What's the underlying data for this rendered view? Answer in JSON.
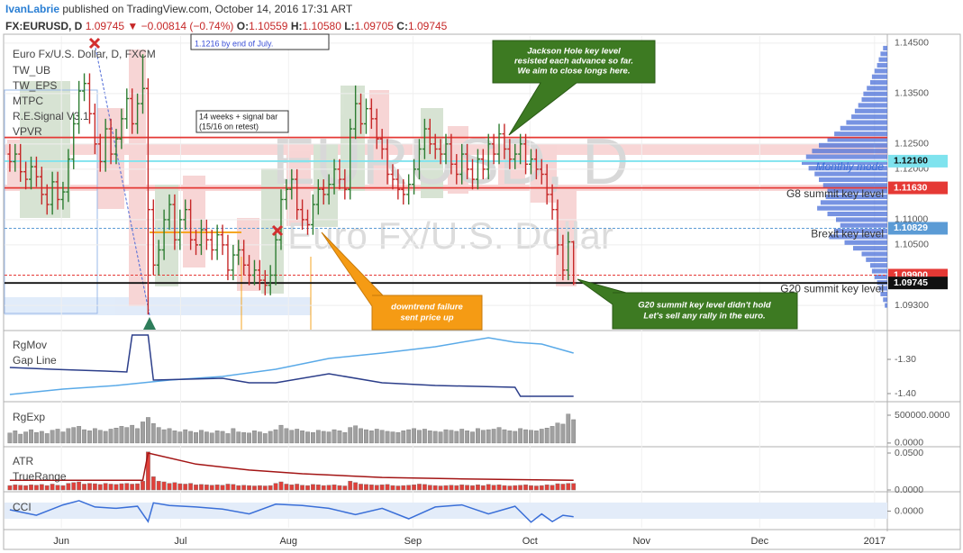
{
  "header": {
    "author": "IvanLabrie",
    "published": "published on TradingView.com, October 14, 2016 17:31 ART",
    "symbol": "FX:EURUSD, D",
    "last": "1.09745",
    "direction": "▼",
    "change": "−0.00814 (−0.74%)",
    "ohlc": [
      {
        "label": "O:",
        "value": "1.10559"
      },
      {
        "label": "H:",
        "value": "1.10580"
      },
      {
        "label": "L:",
        "value": "1.09705"
      },
      {
        "label": "C:",
        "value": "1.09745"
      }
    ]
  },
  "annotations": {
    "target_note": "1.1216 by end of July.",
    "signal_note": [
      "14 weeks + signal bar",
      "(15/16 on retest)"
    ],
    "jackson": [
      "Jackson Hole key level",
      "resisted each advance so far.",
      "We aim to close longs here."
    ],
    "downtrend": [
      "downtrend failure",
      "sent price up"
    ],
    "g20": [
      "G20 summit key level didn't hold",
      "Let's sell any rally in the euro."
    ]
  },
  "chart_data": [
    {
      "type": "ohlc",
      "title": "Euro Fx/U.S. Dollar, D, FXCM",
      "indicators": [
        "TW_UB",
        "TW_EPS",
        "MTPC",
        "R.E.Signal V3.1",
        "VPVR"
      ],
      "watermark": "EURUSD, D",
      "watermark_sub": "Euro Fx/U.S. Dollar",
      "up_color": "#2e7d32",
      "down_color": "#c62828",
      "grid": true,
      "open": [
        1.123,
        1.1215,
        1.123,
        1.1195,
        1.118,
        1.1205,
        1.1185,
        1.115,
        1.113,
        1.1175,
        1.114,
        1.1155,
        1.122,
        1.129,
        1.1355,
        1.137,
        1.131,
        1.125,
        1.1215,
        1.128,
        1.123,
        1.126,
        1.13,
        1.134,
        1.129,
        1.133,
        1.136,
        1.112,
        1.101,
        1.104,
        1.11,
        1.113,
        1.106,
        1.11,
        1.112,
        1.106,
        1.105,
        1.108,
        1.106,
        1.104,
        1.107,
        1.105,
        1.1,
        1.103,
        1.104,
        1.101,
        1.099,
        1.1,
        1.098,
        1.097,
        1.099,
        1.106,
        1.114,
        1.116,
        1.118,
        1.112,
        1.11,
        1.109,
        1.113,
        1.116,
        1.115,
        1.117,
        1.12,
        1.118,
        1.116,
        1.128,
        1.133,
        1.129,
        1.132,
        1.13,
        1.126,
        1.124,
        1.119,
        1.118,
        1.116,
        1.115,
        1.117,
        1.12,
        1.124,
        1.128,
        1.125,
        1.124,
        1.123,
        1.125,
        1.121,
        1.119,
        1.123,
        1.12,
        1.118,
        1.122,
        1.12,
        1.125,
        1.123,
        1.127,
        1.124,
        1.122,
        1.123,
        1.125,
        1.121,
        1.122,
        1.12,
        1.119,
        1.115,
        1.112,
        1.105,
        1.1,
        1.10559
      ],
      "high": [
        1.125,
        1.125,
        1.125,
        1.1215,
        1.1225,
        1.1225,
        1.1205,
        1.117,
        1.1195,
        1.1195,
        1.1175,
        1.124,
        1.131,
        1.1375,
        1.139,
        1.139,
        1.133,
        1.127,
        1.13,
        1.13,
        1.128,
        1.132,
        1.136,
        1.136,
        1.135,
        1.1428,
        1.138,
        1.114,
        1.106,
        1.112,
        1.115,
        1.115,
        1.112,
        1.114,
        1.114,
        1.108,
        1.11,
        1.11,
        1.108,
        1.109,
        1.109,
        1.107,
        1.105,
        1.106,
        1.106,
        1.103,
        1.102,
        1.102,
        1.1,
        1.101,
        1.108,
        1.116,
        1.118,
        1.12,
        1.12,
        1.114,
        1.112,
        1.115,
        1.118,
        1.118,
        1.119,
        1.122,
        1.122,
        1.12,
        1.13,
        1.1366,
        1.135,
        1.134,
        1.134,
        1.132,
        1.128,
        1.126,
        1.121,
        1.12,
        1.118,
        1.119,
        1.122,
        1.126,
        1.13,
        1.13,
        1.127,
        1.126,
        1.127,
        1.127,
        1.123,
        1.125,
        1.125,
        1.122,
        1.124,
        1.124,
        1.127,
        1.127,
        1.129,
        1.129,
        1.126,
        1.125,
        1.127,
        1.127,
        1.124,
        1.124,
        1.122,
        1.121,
        1.117,
        1.114,
        1.107,
        1.1076,
        1.1058
      ],
      "low": [
        1.1195,
        1.1195,
        1.1175,
        1.116,
        1.116,
        1.1165,
        1.113,
        1.111,
        1.111,
        1.112,
        1.112,
        1.1135,
        1.12,
        1.127,
        1.1335,
        1.129,
        1.123,
        1.1195,
        1.1195,
        1.121,
        1.121,
        1.124,
        1.128,
        1.127,
        1.127,
        1.131,
        1.0912,
        1.099,
        1.099,
        1.102,
        1.108,
        1.104,
        1.104,
        1.108,
        1.104,
        1.103,
        1.103,
        1.104,
        1.102,
        1.102,
        1.103,
        1.098,
        1.098,
        1.101,
        1.099,
        1.097,
        1.097,
        1.096,
        1.095,
        1.095,
        1.097,
        1.104,
        1.112,
        1.114,
        1.11,
        1.108,
        1.107,
        1.107,
        1.111,
        1.113,
        1.113,
        1.115,
        1.116,
        1.114,
        1.114,
        1.126,
        1.127,
        1.127,
        1.128,
        1.124,
        1.122,
        1.117,
        1.116,
        1.114,
        1.113,
        1.113,
        1.115,
        1.118,
        1.122,
        1.123,
        1.122,
        1.121,
        1.121,
        1.119,
        1.117,
        1.117,
        1.118,
        1.116,
        1.116,
        1.118,
        1.118,
        1.121,
        1.121,
        1.122,
        1.12,
        1.12,
        1.121,
        1.119,
        1.119,
        1.118,
        1.117,
        1.113,
        1.11,
        1.103,
        1.098,
        1.098,
        1.09705
      ],
      "close": [
        1.1215,
        1.123,
        1.1195,
        1.118,
        1.1205,
        1.1185,
        1.115,
        1.113,
        1.1175,
        1.114,
        1.1155,
        1.122,
        1.129,
        1.1355,
        1.137,
        1.131,
        1.125,
        1.1215,
        1.128,
        1.123,
        1.126,
        1.13,
        1.134,
        1.129,
        1.133,
        1.136,
        1.112,
        1.101,
        1.104,
        1.11,
        1.113,
        1.106,
        1.11,
        1.112,
        1.106,
        1.105,
        1.108,
        1.106,
        1.104,
        1.107,
        1.105,
        1.1,
        1.103,
        1.104,
        1.101,
        1.099,
        1.1,
        1.098,
        1.097,
        1.099,
        1.106,
        1.114,
        1.116,
        1.118,
        1.112,
        1.11,
        1.109,
        1.113,
        1.116,
        1.115,
        1.117,
        1.12,
        1.118,
        1.116,
        1.128,
        1.133,
        1.129,
        1.132,
        1.13,
        1.126,
        1.124,
        1.119,
        1.118,
        1.116,
        1.115,
        1.117,
        1.12,
        1.124,
        1.128,
        1.125,
        1.124,
        1.123,
        1.125,
        1.121,
        1.119,
        1.123,
        1.12,
        1.118,
        1.122,
        1.12,
        1.125,
        1.123,
        1.127,
        1.124,
        1.122,
        1.123,
        1.125,
        1.121,
        1.122,
        1.12,
        1.119,
        1.115,
        1.112,
        1.105,
        1.1,
        1.1056,
        1.09745
      ],
      "xlim": [
        -1,
        165
      ],
      "xticks": [
        {
          "value": 9.7,
          "label": "Jun"
        },
        {
          "value": 32.1,
          "label": "Jul"
        },
        {
          "value": 52.4,
          "label": "Aug"
        },
        {
          "value": 75.8,
          "label": "Sep"
        },
        {
          "value": 97.8,
          "label": "Oct"
        },
        {
          "value": 118.8,
          "label": "Nov"
        },
        {
          "value": 141.0,
          "label": "Dec"
        },
        {
          "value": 162.6,
          "label": "2017"
        }
      ],
      "ylim": [
        1.0882,
        1.1464
      ],
      "yticks": [
        {
          "value": 1.145,
          "label": "1.14500"
        },
        {
          "value": 1.135,
          "label": "1.13500"
        },
        {
          "value": 1.125,
          "label": "1.12500"
        },
        {
          "value": 1.12,
          "label": "1.12000"
        },
        {
          "value": 1.11,
          "label": "1.11000"
        },
        {
          "value": 1.105,
          "label": "1.10500"
        },
        {
          "value": 1.093,
          "label": "1.09300"
        }
      ],
      "levels": [
        {
          "value": 1.1263,
          "color": "#e53935"
        },
        {
          "value": 1.1216,
          "label": "1.12160",
          "color": "#7fe3ee",
          "text_color": "#111",
          "name": "Monthly mode",
          "name_color": "#3a6fd8"
        },
        {
          "value": 1.1163,
          "label": "1.11630",
          "color": "#e53935",
          "text_color": "#fff",
          "name": "G8 summit key level",
          "name_color": "#333"
        },
        {
          "value": 1.10829,
          "label": "1.10829",
          "color": "#5b9bd5",
          "text_color": "#fff",
          "dashed": true,
          "name": "Brexit key level",
          "name_color": "#333"
        },
        {
          "value": 1.099,
          "label": "1.09900",
          "color": "#e53935",
          "text_color": "#fff",
          "dashed": true
        },
        {
          "value": 1.09745,
          "label": "1.09745",
          "color": "#111111",
          "text_color": "#fff",
          "name": "G20 summit key level",
          "name_color": "#333"
        }
      ],
      "volume_profile": {
        "range": [
          1.144,
          1.093
        ],
        "color": "#4a6fd8",
        "values": [
          5,
          8,
          10,
          12,
          15,
          18,
          20,
          24,
          28,
          30,
          34,
          38,
          42,
          48,
          55,
          62,
          70,
          80,
          88,
          95,
          100,
          92,
          85,
          80,
          75,
          70,
          72,
          78,
          82,
          70,
          60,
          55,
          62,
          68,
          50,
          40,
          30,
          25,
          20,
          18,
          15,
          12,
          10,
          8,
          5,
          3
        ]
      }
    },
    {
      "type": "line",
      "ylim": [
        -1.4211,
        -1.2184
      ],
      "yticks": [
        {
          "value": -1.3,
          "label": "-1.30"
        },
        {
          "value": -1.4,
          "label": "-1.40"
        }
      ],
      "series": [
        {
          "name": "RgMov",
          "color": "#5aaae8",
          "x": [
            0,
            10,
            20,
            30,
            40,
            50,
            60,
            70,
            80,
            90,
            95,
            100,
            106
          ],
          "values": [
            -1.4026,
            -1.3868,
            -1.3763,
            -1.3605,
            -1.35,
            -1.3289,
            -1.2974,
            -1.2816,
            -1.2632,
            -1.2368,
            -1.25,
            -1.2553,
            -1.2816
          ]
        },
        {
          "name": "Gap Line",
          "color": "#2c3e8a",
          "x": [
            0,
            8,
            18,
            22,
            23,
            26,
            27,
            40,
            45,
            50,
            60,
            70,
            80,
            95,
            96,
            106
          ],
          "values": [
            -1.3237,
            -1.3289,
            -1.3342,
            -1.3368,
            -1.2289,
            -1.2289,
            -1.3605,
            -1.3553,
            -1.3684,
            -1.3684,
            -1.3421,
            -1.3684,
            -1.3763,
            -1.3816,
            -1.4079,
            -1.4079
          ]
        }
      ]
    },
    {
      "type": "bar",
      "title": "RgExp",
      "color": "#a0a0a0",
      "ylim": [
        -50000,
        710000
      ],
      "yticks": [
        {
          "value": 500000,
          "label": "500000.0000"
        },
        {
          "value": 0,
          "label": "0.0000"
        }
      ],
      "values": [
        180000,
        220000,
        160000,
        200000,
        240000,
        190000,
        210000,
        170000,
        230000,
        250000,
        200000,
        260000,
        280000,
        300000,
        240000,
        220000,
        260000,
        230000,
        210000,
        250000,
        270000,
        300000,
        280000,
        320000,
        260000,
        380000,
        460000,
        350000,
        280000,
        240000,
        260000,
        220000,
        200000,
        240000,
        210000,
        190000,
        230000,
        200000,
        180000,
        220000,
        210000,
        170000,
        260000,
        200000,
        190000,
        180000,
        220000,
        200000,
        170000,
        210000,
        240000,
        320000,
        260000,
        230000,
        250000,
        220000,
        200000,
        190000,
        230000,
        210000,
        200000,
        240000,
        220000,
        190000,
        280000,
        310000,
        260000,
        240000,
        220000,
        250000,
        230000,
        210000,
        200000,
        190000,
        220000,
        240000,
        260000,
        230000,
        250000,
        220000,
        210000,
        200000,
        240000,
        230000,
        210000,
        250000,
        220000,
        200000,
        260000,
        230000,
        240000,
        250000,
        280000,
        240000,
        220000,
        210000,
        260000,
        240000,
        230000,
        220000,
        250000,
        270000,
        300000,
        360000,
        340000,
        520000,
        420000
      ]
    },
    {
      "type": "combo",
      "ylim": [
        -0.0012,
        0.0573
      ],
      "yticks": [
        {
          "value": 0.05,
          "label": "0.0500"
        },
        {
          "value": 0,
          "label": "0.0000"
        }
      ],
      "series": [
        {
          "name": "ATR",
          "type": "line",
          "color": "#a31515",
          "x": [
            0,
            25,
            26,
            35,
            45,
            55,
            70,
            85,
            106
          ],
          "values": [
            0.013,
            0.013,
            0.05,
            0.035,
            0.027,
            0.022,
            0.017,
            0.015,
            0.013
          ]
        },
        {
          "name": "TrueRange",
          "type": "bar",
          "color": "#e0403a",
          "values": [
            0.006,
            0.007,
            0.0065,
            0.006,
            0.007,
            0.0065,
            0.0075,
            0.006,
            0.008,
            0.0065,
            0.006,
            0.009,
            0.01,
            0.011,
            0.008,
            0.009,
            0.0085,
            0.0075,
            0.009,
            0.008,
            0.0075,
            0.0085,
            0.009,
            0.008,
            0.0085,
            0.012,
            0.0516,
            0.018,
            0.012,
            0.011,
            0.009,
            0.01,
            0.0085,
            0.008,
            0.009,
            0.007,
            0.0075,
            0.007,
            0.0065,
            0.007,
            0.0065,
            0.008,
            0.0075,
            0.006,
            0.0065,
            0.006,
            0.0055,
            0.006,
            0.0055,
            0.006,
            0.009,
            0.011,
            0.008,
            0.007,
            0.008,
            0.0065,
            0.006,
            0.0075,
            0.007,
            0.006,
            0.0065,
            0.007,
            0.006,
            0.0055,
            0.012,
            0.01,
            0.008,
            0.0075,
            0.007,
            0.0065,
            0.007,
            0.0075,
            0.006,
            0.0055,
            0.006,
            0.0065,
            0.007,
            0.008,
            0.0075,
            0.0065,
            0.006,
            0.0055,
            0.006,
            0.0065,
            0.006,
            0.007,
            0.0065,
            0.006,
            0.007,
            0.006,
            0.0075,
            0.0065,
            0.007,
            0.006,
            0.0055,
            0.006,
            0.0065,
            0.007,
            0.006,
            0.0055,
            0.006,
            0.007,
            0.0065,
            0.0085,
            0.008,
            0.009,
            0.0088
          ]
        }
      ]
    },
    {
      "type": "line",
      "ylim": [
        -240,
        253
      ],
      "yticks": [
        {
          "value": 0,
          "label": "0.0000"
        }
      ],
      "series": [
        {
          "name": "CCI",
          "color": "#3a6fd8",
          "x": [
            0,
            5,
            10,
            13,
            16,
            20,
            24,
            26,
            27,
            30,
            35,
            40,
            45,
            50,
            55,
            60,
            65,
            70,
            75,
            80,
            85,
            90,
            95,
            98,
            100,
            102,
            104,
            106
          ],
          "values": [
            20,
            -60,
            90,
            150,
            60,
            40,
            70,
            -150,
            120,
            80,
            60,
            30,
            -40,
            100,
            80,
            40,
            -50,
            40,
            -110,
            60,
            90,
            -40,
            70,
            -160,
            -40,
            -150,
            -60,
            -80
          ]
        }
      ]
    }
  ]
}
